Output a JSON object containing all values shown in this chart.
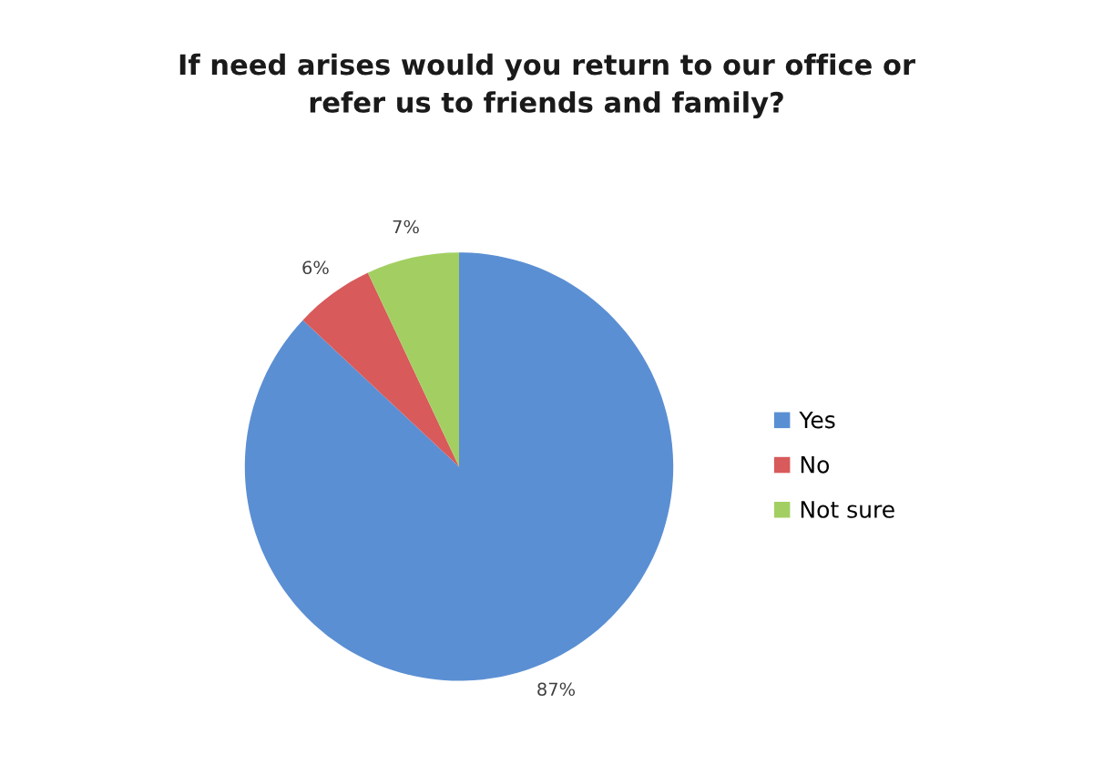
{
  "chart_data": {
    "type": "pie",
    "title": "If need arises would you return to our office or\nrefer us to friends and family?",
    "categories": [
      "Yes",
      "No",
      "Not sure"
    ],
    "values": [
      87,
      6,
      7
    ],
    "colors": [
      "#5b8fd3",
      "#d85a5a",
      "#a3cf62"
    ],
    "value_labels": [
      "87%",
      "6%",
      "7%"
    ],
    "legend": "right"
  }
}
